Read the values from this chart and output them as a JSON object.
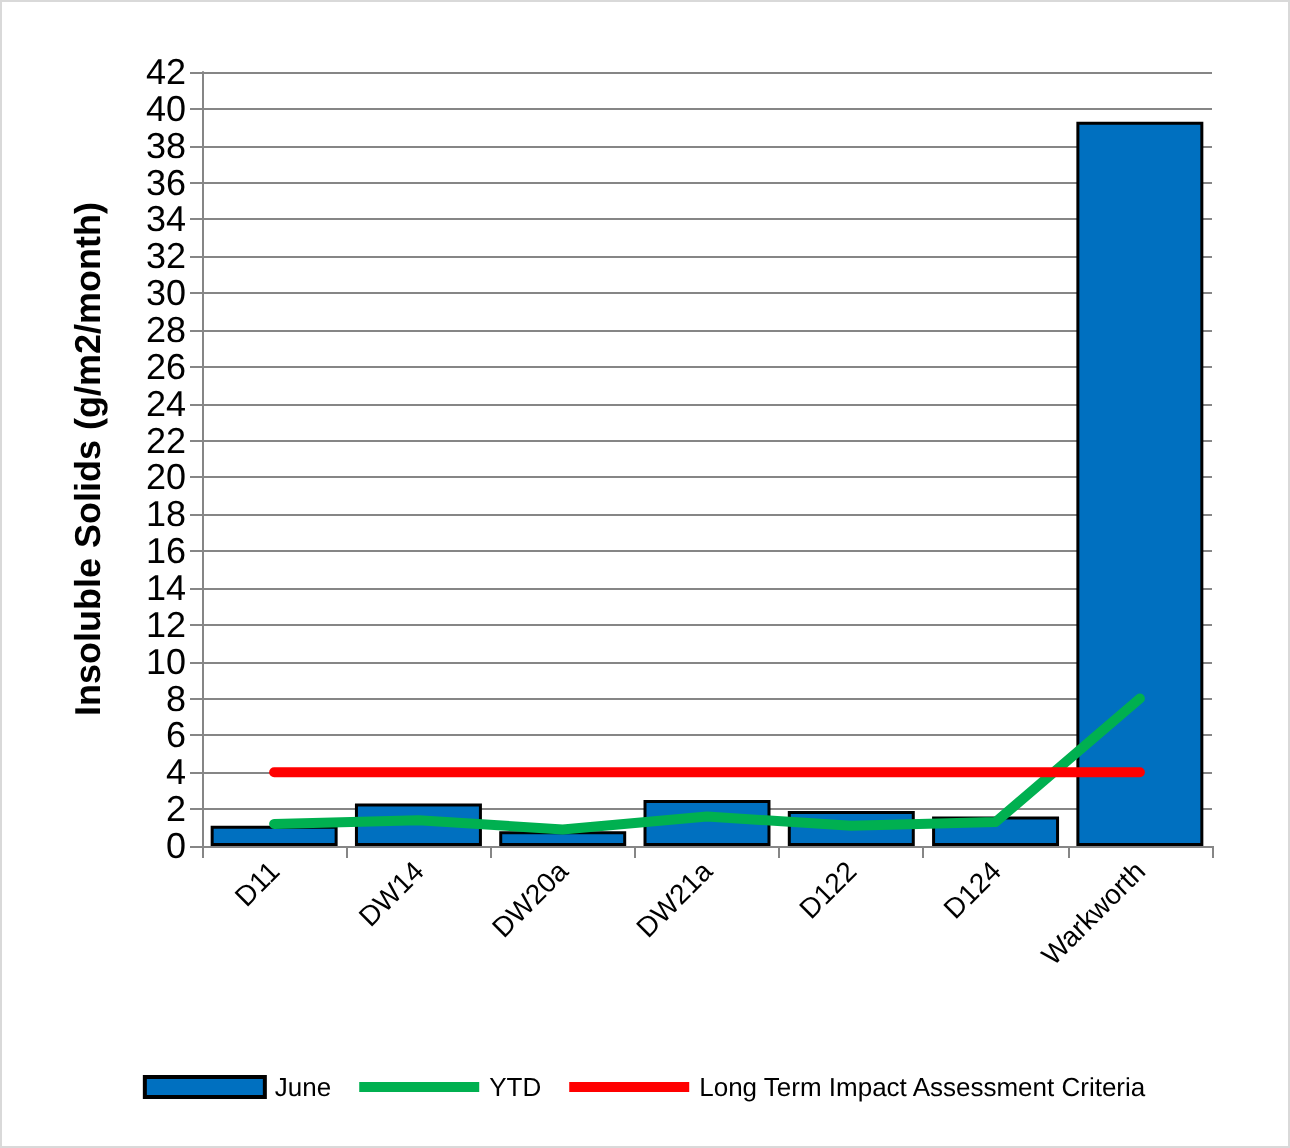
{
  "chart_data": {
    "type": "bar",
    "ylabel": "Insoluble Solids (g/m2/month)",
    "categories": [
      "D11",
      "DW14",
      "DW20a",
      "DW21a",
      "D122",
      "D124",
      "Warkworth"
    ],
    "series": [
      {
        "name": "June",
        "color": "#0070c0",
        "values": [
          1.1,
          2.3,
          0.8,
          2.5,
          1.9,
          1.6,
          39.3
        ]
      },
      {
        "name": "YTD",
        "type": "line",
        "color": "#00b050",
        "values": [
          1.2,
          1.4,
          0.9,
          1.6,
          1.1,
          1.3,
          8.0
        ]
      },
      {
        "name": "Long Term Impact Assessment Criteria",
        "type": "line",
        "color": "#ff0000",
        "values": [
          4,
          4,
          4,
          4,
          4,
          4,
          4
        ]
      }
    ],
    "ylim": [
      0,
      42
    ],
    "yticks": [
      0,
      2,
      4,
      6,
      8,
      10,
      12,
      14,
      16,
      18,
      20,
      22,
      24,
      26,
      28,
      30,
      32,
      34,
      36,
      38,
      40,
      42
    ],
    "grid": "y",
    "legend": "bottom",
    "marker": "none"
  }
}
